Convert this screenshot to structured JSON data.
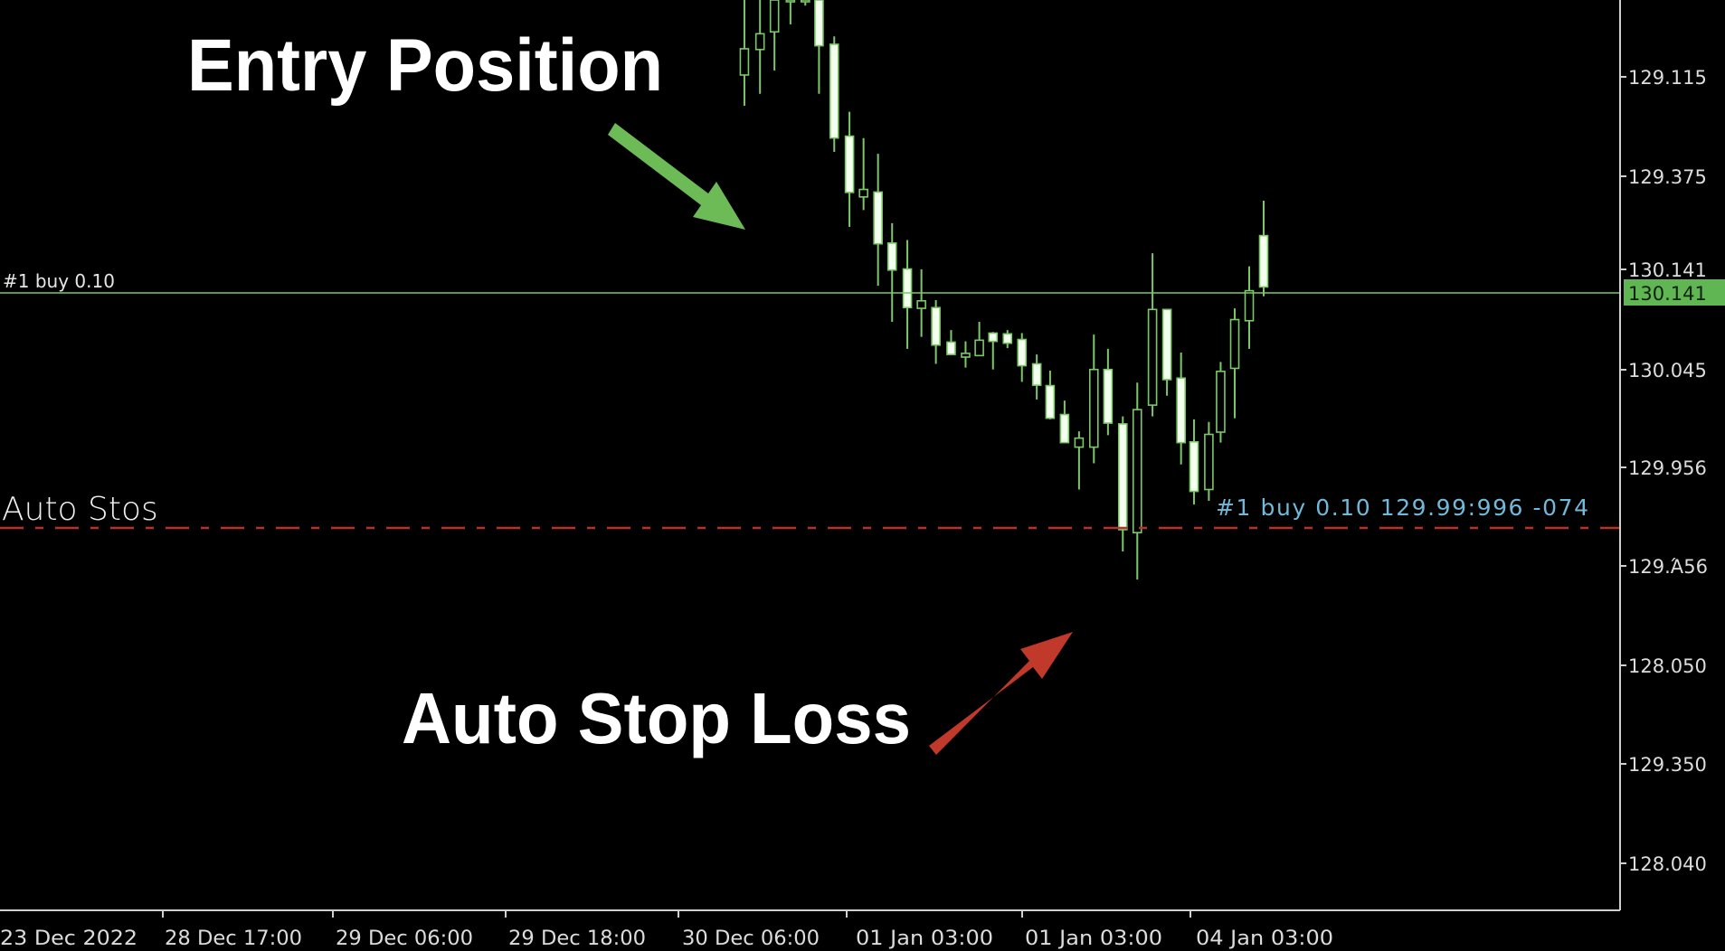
{
  "annotations": {
    "entry_title": "Entry Position",
    "stop_title": "Auto Stop Loss",
    "entry_arrow_color": "#6dbb57",
    "stop_arrow_color": "#c0392b"
  },
  "chart": {
    "entry_line_label": "#1 buy 0.10",
    "stop_line_label": "Auto Stos",
    "stop_line_order_text": "#1 buy 0.10  129.99:996 -074",
    "current_price": "130.141",
    "price_axis": [
      "129.115",
      "129.375",
      "130.141",
      "130.045",
      "129.956",
      "129.Ά56",
      "128.050",
      "129.350",
      "128.040"
    ],
    "time_axis": [
      "23 Dec 2022",
      "28 Dec 17:00",
      "29 Dec 06:00",
      "29 Dec 18:00",
      "30 Dec 06:00",
      "01 Jan 03:00",
      "01 Jan 03:00",
      "04 Jan 03:00"
    ],
    "colors": {
      "candle": "#7cc868",
      "entry_line": "#7cc868",
      "stop_line": "#b8322a",
      "order_text": "#72b8d8",
      "price_box": "#5fb653"
    }
  }
}
